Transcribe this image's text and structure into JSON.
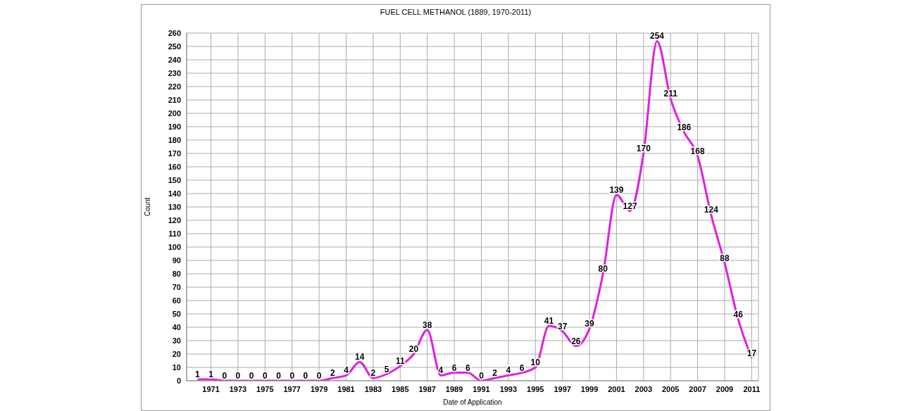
{
  "chart_data": {
    "type": "line",
    "title": "FUEL CELL METHANOL (1889, 1970-2011)",
    "xlabel": "Date of Application",
    "ylabel": "Count",
    "categories": [
      null,
      "1971",
      null,
      "1973",
      null,
      "1975",
      null,
      "1977",
      null,
      "1979",
      null,
      "1981",
      null,
      "1983",
      null,
      "1985",
      null,
      "1987",
      null,
      "1989",
      null,
      "1991",
      null,
      "1993",
      null,
      "1995",
      null,
      "1997",
      null,
      "1999",
      null,
      "2001",
      null,
      "2003",
      null,
      "2005",
      null,
      "2007",
      null,
      "2009",
      null,
      "2011"
    ],
    "series": [
      {
        "color": "#e020e0",
        "values": [
          1,
          1,
          0,
          0,
          0,
          0,
          0,
          0,
          0,
          0,
          2,
          4,
          14,
          2,
          5,
          11,
          20,
          38,
          4,
          6,
          6,
          0,
          2,
          4,
          6,
          10,
          41,
          37,
          26,
          39,
          80,
          139,
          127,
          170,
          254,
          211,
          186,
          168,
          124,
          88,
          46,
          17
        ]
      }
    ],
    "ylim": [
      0,
      260
    ],
    "yticks": [
      0,
      10,
      20,
      30,
      40,
      50,
      60,
      70,
      80,
      90,
      100,
      110,
      120,
      130,
      140,
      150,
      160,
      170,
      180,
      190,
      200,
      210,
      220,
      230,
      240,
      250,
      260
    ],
    "grid": true,
    "data_labels": true,
    "marker": "none"
  }
}
